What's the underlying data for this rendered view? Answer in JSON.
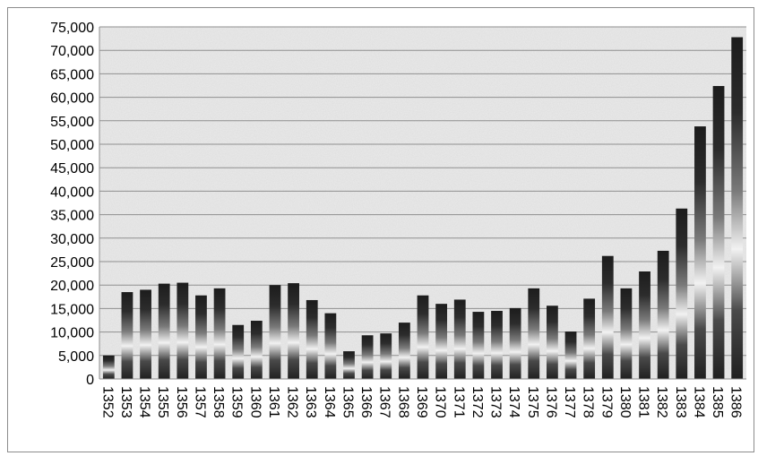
{
  "chart_data": {
    "type": "bar",
    "title": "",
    "xlabel": "",
    "ylabel": "",
    "categories": [
      "1352",
      "1353",
      "1354",
      "1355",
      "1356",
      "1357",
      "1358",
      "1359",
      "1360",
      "1361",
      "1362",
      "1363",
      "1364",
      "1365",
      "1366",
      "1367",
      "1368",
      "1369",
      "1370",
      "1371",
      "1372",
      "1373",
      "1374",
      "1375",
      "1376",
      "1377",
      "1378",
      "1379",
      "1380",
      "1381",
      "1382",
      "1383",
      "1384",
      "1385",
      "1386"
    ],
    "values": [
      5000,
      18500,
      19000,
      20300,
      20500,
      17800,
      19300,
      11500,
      12400,
      20000,
      20400,
      16800,
      14000,
      5900,
      9300,
      9700,
      12000,
      17800,
      16000,
      16900,
      14300,
      14500,
      15100,
      19300,
      15600,
      10100,
      17100,
      26200,
      19300,
      22900,
      27300,
      36300,
      53800,
      62400,
      72800
    ],
    "ylim": [
      0,
      75000
    ],
    "yticks": [
      "0",
      "5,000",
      "10,000",
      "15,000",
      "20,000",
      "25,000",
      "30,000",
      "35,000",
      "40,000",
      "45,000",
      "50,000",
      "55,000",
      "60,000",
      "65,000",
      "70,000",
      "75,000"
    ],
    "grid": true,
    "legend": "none"
  }
}
